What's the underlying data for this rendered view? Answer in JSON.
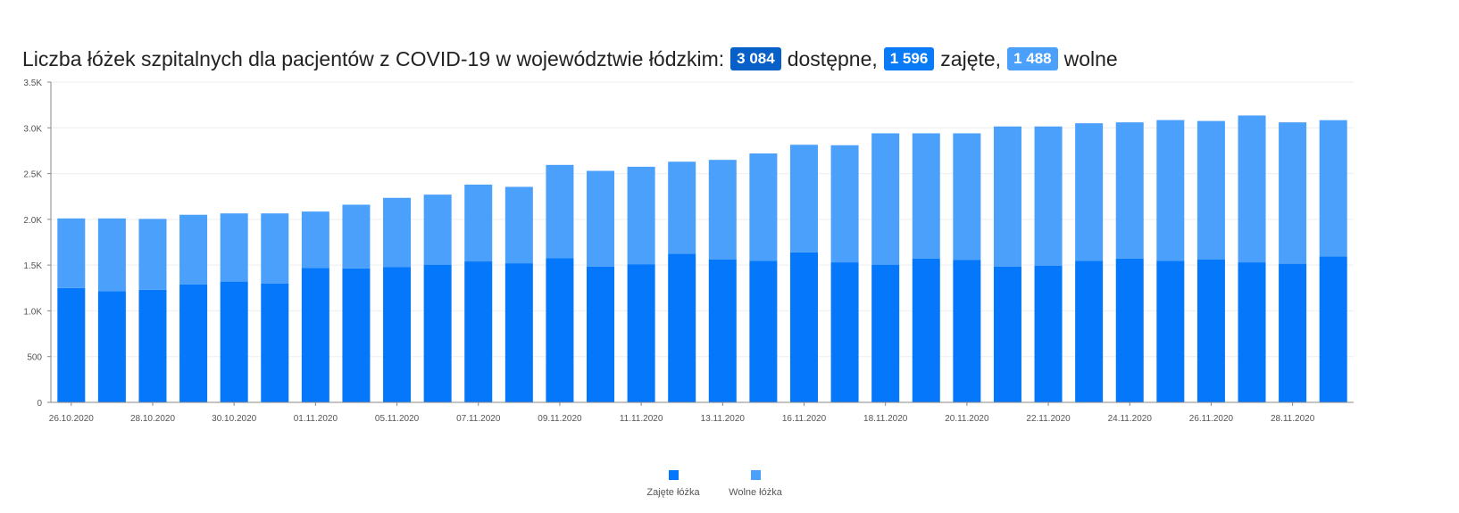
{
  "header": {
    "title_prefix": "Liczba łóżek szpitalnych dla pacjentów z COVID-19 w województwie łódzkim:",
    "available_value": "3 084",
    "available_label": "dostępne,",
    "occupied_value": "1 596",
    "occupied_label": "zajęte,",
    "free_value": "1 488",
    "free_label": "wolne"
  },
  "colors": {
    "occupied": "#0477fb",
    "free": "#4aa0fb",
    "available_badge": "#0660c8",
    "occupied_badge": "#0a7bf7",
    "free_badge": "#4aa0fb"
  },
  "chart_data": {
    "type": "bar",
    "stacked": true,
    "title": "",
    "xlabel": "",
    "ylabel": "",
    "ylim": [
      0,
      3500
    ],
    "yticks": [
      0,
      500,
      1000,
      1500,
      2000,
      2500,
      3000,
      3500
    ],
    "ytick_labels": [
      "0",
      "500",
      "1.0K",
      "1.5K",
      "2.0K",
      "2.5K",
      "3.0K",
      "3.5K"
    ],
    "xtick_labels": [
      "26.10.2020",
      "28.10.2020",
      "30.10.2020",
      "01.11.2020",
      "05.11.2020",
      "07.11.2020",
      "09.11.2020",
      "11.11.2020",
      "13.11.2020",
      "16.11.2020",
      "18.11.2020",
      "20.11.2020",
      "22.11.2020",
      "24.11.2020",
      "26.11.2020",
      "28.11.2020"
    ],
    "legend_position": "bottom-center",
    "series": [
      {
        "name": "Zajęte łóżka",
        "values": [
          1250,
          1215,
          1230,
          1290,
          1320,
          1300,
          1470,
          1465,
          1480,
          1505,
          1540,
          1520,
          1575,
          1485,
          1510,
          1625,
          1560,
          1545,
          1640,
          1530,
          1505,
          1570,
          1555,
          1485,
          1495,
          1545,
          1570,
          1545,
          1560,
          1530,
          1515,
          1596
        ]
      },
      {
        "name": "Wolne łóżka",
        "values": [
          760,
          795,
          775,
          760,
          745,
          765,
          615,
          695,
          755,
          765,
          840,
          835,
          1020,
          1045,
          1065,
          1005,
          1090,
          1175,
          1175,
          1280,
          1435,
          1370,
          1385,
          1530,
          1520,
          1505,
          1490,
          1540,
          1515,
          1605,
          1545,
          1488
        ]
      }
    ]
  }
}
